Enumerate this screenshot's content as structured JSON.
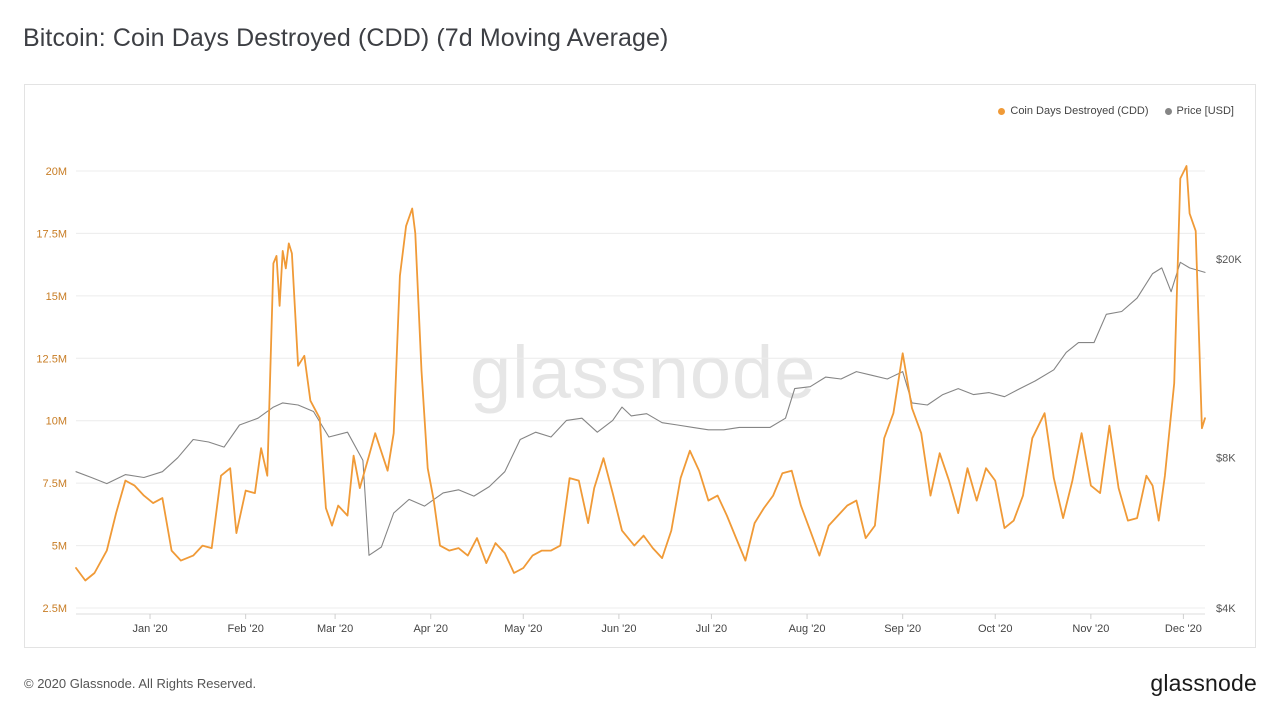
{
  "header": {
    "title": "Bitcoin: Coin Days Destroyed (CDD) (7d Moving Average)"
  },
  "watermark": "glassnode",
  "footer": {
    "copyright": "© 2020 Glassnode. All Rights Reserved.",
    "logo": "glassnode"
  },
  "colors": {
    "cdd": "#f09a37",
    "price": "#858585",
    "grid": "#ececec",
    "axis_left": "#c87d25",
    "axis_right": "#555555"
  },
  "chart_data": {
    "type": "line",
    "title": "Bitcoin: Coin Days Destroyed (CDD) (7d Moving Average)",
    "legend": {
      "position": "top-right",
      "entries": [
        "Coin Days Destroyed (CDD)",
        "Price [USD]"
      ]
    },
    "grid": true,
    "x_range": [
      "2019-12-08",
      "2020-12-08"
    ],
    "x_ticks": [
      {
        "date": "2020-01-01",
        "label": "Jan '20"
      },
      {
        "date": "2020-02-01",
        "label": "Feb '20"
      },
      {
        "date": "2020-03-01",
        "label": "Mar '20"
      },
      {
        "date": "2020-04-01",
        "label": "Apr '20"
      },
      {
        "date": "2020-05-01",
        "label": "May '20"
      },
      {
        "date": "2020-06-01",
        "label": "Jun '20"
      },
      {
        "date": "2020-07-01",
        "label": "Jul '20"
      },
      {
        "date": "2020-08-01",
        "label": "Aug '20"
      },
      {
        "date": "2020-09-01",
        "label": "Sep '20"
      },
      {
        "date": "2020-10-01",
        "label": "Oct '20"
      },
      {
        "date": "2020-11-01",
        "label": "Nov '20"
      },
      {
        "date": "2020-12-01",
        "label": "Dec '20"
      }
    ],
    "y_left": {
      "range": [
        2500000,
        22000000
      ],
      "ticks": [
        {
          "value": 2500000,
          "label": "2.5M"
        },
        {
          "value": 5000000,
          "label": "5M"
        },
        {
          "value": 7500000,
          "label": "7.5M"
        },
        {
          "value": 10000000,
          "label": "10M"
        },
        {
          "value": 12500000,
          "label": "12.5M"
        },
        {
          "value": 15000000,
          "label": "15M"
        },
        {
          "value": 17500000,
          "label": "17.5M"
        },
        {
          "value": 20000000,
          "label": "20M"
        }
      ]
    },
    "y_right": {
      "scale": "log",
      "range": [
        4000,
        26000
      ],
      "ticks": [
        {
          "value": 4000,
          "label": "$4K"
        },
        {
          "value": 8000,
          "label": "$8K"
        },
        {
          "value": 20000,
          "label": "$20K"
        }
      ]
    },
    "series": [
      {
        "name": "Coin Days Destroyed (CDD)",
        "axis": "left",
        "points": [
          [
            "2019-12-08",
            4100000
          ],
          [
            "2019-12-11",
            3600000
          ],
          [
            "2019-12-14",
            3900000
          ],
          [
            "2019-12-18",
            4800000
          ],
          [
            "2019-12-21",
            6300000
          ],
          [
            "2019-12-24",
            7600000
          ],
          [
            "2019-12-27",
            7400000
          ],
          [
            "2019-12-30",
            7000000
          ],
          [
            "2020-01-02",
            6700000
          ],
          [
            "2020-01-05",
            6900000
          ],
          [
            "2020-01-08",
            4800000
          ],
          [
            "2020-01-11",
            4400000
          ],
          [
            "2020-01-15",
            4600000
          ],
          [
            "2020-01-18",
            5000000
          ],
          [
            "2020-01-21",
            4900000
          ],
          [
            "2020-01-24",
            7800000
          ],
          [
            "2020-01-27",
            8100000
          ],
          [
            "2020-01-29",
            5500000
          ],
          [
            "2020-02-01",
            7200000
          ],
          [
            "2020-02-04",
            7100000
          ],
          [
            "2020-02-06",
            8900000
          ],
          [
            "2020-02-08",
            7800000
          ],
          [
            "2020-02-10",
            16300000
          ],
          [
            "2020-02-11",
            16600000
          ],
          [
            "2020-02-12",
            14600000
          ],
          [
            "2020-02-13",
            16800000
          ],
          [
            "2020-02-14",
            16100000
          ],
          [
            "2020-02-15",
            17100000
          ],
          [
            "2020-02-16",
            16700000
          ],
          [
            "2020-02-18",
            12200000
          ],
          [
            "2020-02-20",
            12600000
          ],
          [
            "2020-02-22",
            10800000
          ],
          [
            "2020-02-25",
            10100000
          ],
          [
            "2020-02-27",
            6500000
          ],
          [
            "2020-02-29",
            5800000
          ],
          [
            "2020-03-02",
            6600000
          ],
          [
            "2020-03-05",
            6200000
          ],
          [
            "2020-03-07",
            8600000
          ],
          [
            "2020-03-09",
            7300000
          ],
          [
            "2020-03-12",
            8600000
          ],
          [
            "2020-03-14",
            9500000
          ],
          [
            "2020-03-18",
            8000000
          ],
          [
            "2020-03-20",
            9500000
          ],
          [
            "2020-03-22",
            15800000
          ],
          [
            "2020-03-24",
            17800000
          ],
          [
            "2020-03-26",
            18500000
          ],
          [
            "2020-03-27",
            17500000
          ],
          [
            "2020-03-29",
            12000000
          ],
          [
            "2020-03-31",
            8100000
          ],
          [
            "2020-04-02",
            6800000
          ],
          [
            "2020-04-04",
            5000000
          ],
          [
            "2020-04-07",
            4800000
          ],
          [
            "2020-04-10",
            4900000
          ],
          [
            "2020-04-13",
            4600000
          ],
          [
            "2020-04-16",
            5300000
          ],
          [
            "2020-04-19",
            4300000
          ],
          [
            "2020-04-22",
            5100000
          ],
          [
            "2020-04-25",
            4700000
          ],
          [
            "2020-04-28",
            3900000
          ],
          [
            "2020-05-01",
            4100000
          ],
          [
            "2020-05-04",
            4600000
          ],
          [
            "2020-05-07",
            4800000
          ],
          [
            "2020-05-10",
            4800000
          ],
          [
            "2020-05-13",
            5000000
          ],
          [
            "2020-05-16",
            7700000
          ],
          [
            "2020-05-19",
            7600000
          ],
          [
            "2020-05-22",
            5900000
          ],
          [
            "2020-05-24",
            7300000
          ],
          [
            "2020-05-27",
            8500000
          ],
          [
            "2020-05-30",
            7100000
          ],
          [
            "2020-06-02",
            5600000
          ],
          [
            "2020-06-06",
            5000000
          ],
          [
            "2020-06-09",
            5400000
          ],
          [
            "2020-06-12",
            4900000
          ],
          [
            "2020-06-15",
            4500000
          ],
          [
            "2020-06-18",
            5600000
          ],
          [
            "2020-06-21",
            7700000
          ],
          [
            "2020-06-24",
            8800000
          ],
          [
            "2020-06-27",
            8000000
          ],
          [
            "2020-06-30",
            6800000
          ],
          [
            "2020-07-03",
            7000000
          ],
          [
            "2020-07-06",
            6200000
          ],
          [
            "2020-07-09",
            5300000
          ],
          [
            "2020-07-12",
            4400000
          ],
          [
            "2020-07-15",
            5900000
          ],
          [
            "2020-07-18",
            6500000
          ],
          [
            "2020-07-21",
            7000000
          ],
          [
            "2020-07-24",
            7900000
          ],
          [
            "2020-07-27",
            8000000
          ],
          [
            "2020-07-30",
            6600000
          ],
          [
            "2020-08-02",
            5600000
          ],
          [
            "2020-08-05",
            4600000
          ],
          [
            "2020-08-08",
            5800000
          ],
          [
            "2020-08-11",
            6200000
          ],
          [
            "2020-08-14",
            6600000
          ],
          [
            "2020-08-17",
            6800000
          ],
          [
            "2020-08-20",
            5300000
          ],
          [
            "2020-08-23",
            5800000
          ],
          [
            "2020-08-26",
            9300000
          ],
          [
            "2020-08-29",
            10300000
          ],
          [
            "2020-09-01",
            12700000
          ],
          [
            "2020-09-04",
            10500000
          ],
          [
            "2020-09-07",
            9500000
          ],
          [
            "2020-09-10",
            7000000
          ],
          [
            "2020-09-13",
            8700000
          ],
          [
            "2020-09-16",
            7600000
          ],
          [
            "2020-09-19",
            6300000
          ],
          [
            "2020-09-22",
            8100000
          ],
          [
            "2020-09-25",
            6800000
          ],
          [
            "2020-09-28",
            8100000
          ],
          [
            "2020-10-01",
            7600000
          ],
          [
            "2020-10-04",
            5700000
          ],
          [
            "2020-10-07",
            6000000
          ],
          [
            "2020-10-10",
            7000000
          ],
          [
            "2020-10-13",
            9300000
          ],
          [
            "2020-10-17",
            10300000
          ],
          [
            "2020-10-20",
            7700000
          ],
          [
            "2020-10-23",
            6100000
          ],
          [
            "2020-10-26",
            7600000
          ],
          [
            "2020-10-29",
            9500000
          ],
          [
            "2020-11-01",
            7400000
          ],
          [
            "2020-11-04",
            7100000
          ],
          [
            "2020-11-07",
            9800000
          ],
          [
            "2020-11-10",
            7300000
          ],
          [
            "2020-11-13",
            6000000
          ],
          [
            "2020-11-16",
            6100000
          ],
          [
            "2020-11-19",
            7800000
          ],
          [
            "2020-11-21",
            7400000
          ],
          [
            "2020-11-23",
            6000000
          ],
          [
            "2020-11-25",
            7800000
          ],
          [
            "2020-11-28",
            11500000
          ],
          [
            "2020-11-30",
            19700000
          ],
          [
            "2020-12-02",
            20200000
          ],
          [
            "2020-12-03",
            18300000
          ],
          [
            "2020-12-05",
            17600000
          ],
          [
            "2020-12-07",
            9700000
          ],
          [
            "2020-12-08",
            10100000
          ]
        ]
      },
      {
        "name": "Price [USD]",
        "axis": "right",
        "points": [
          [
            "2019-12-08",
            7500
          ],
          [
            "2019-12-13",
            7300
          ],
          [
            "2019-12-18",
            7100
          ],
          [
            "2019-12-24",
            7400
          ],
          [
            "2019-12-30",
            7300
          ],
          [
            "2020-01-05",
            7500
          ],
          [
            "2020-01-10",
            8000
          ],
          [
            "2020-01-15",
            8700
          ],
          [
            "2020-01-20",
            8600
          ],
          [
            "2020-01-25",
            8400
          ],
          [
            "2020-01-30",
            9300
          ],
          [
            "2020-02-05",
            9600
          ],
          [
            "2020-02-10",
            10100
          ],
          [
            "2020-02-13",
            10300
          ],
          [
            "2020-02-18",
            10200
          ],
          [
            "2020-02-23",
            9900
          ],
          [
            "2020-02-28",
            8800
          ],
          [
            "2020-03-05",
            9000
          ],
          [
            "2020-03-10",
            7900
          ],
          [
            "2020-03-12",
            5100
          ],
          [
            "2020-03-16",
            5300
          ],
          [
            "2020-03-20",
            6200
          ],
          [
            "2020-03-25",
            6600
          ],
          [
            "2020-03-30",
            6400
          ],
          [
            "2020-04-05",
            6800
          ],
          [
            "2020-04-10",
            6900
          ],
          [
            "2020-04-15",
            6700
          ],
          [
            "2020-04-20",
            7000
          ],
          [
            "2020-04-25",
            7500
          ],
          [
            "2020-04-30",
            8700
          ],
          [
            "2020-05-05",
            9000
          ],
          [
            "2020-05-10",
            8800
          ],
          [
            "2020-05-15",
            9500
          ],
          [
            "2020-05-20",
            9600
          ],
          [
            "2020-05-25",
            9000
          ],
          [
            "2020-05-30",
            9500
          ],
          [
            "2020-06-02",
            10100
          ],
          [
            "2020-06-05",
            9700
          ],
          [
            "2020-06-10",
            9800
          ],
          [
            "2020-06-15",
            9400
          ],
          [
            "2020-06-20",
            9300
          ],
          [
            "2020-06-25",
            9200
          ],
          [
            "2020-06-30",
            9100
          ],
          [
            "2020-07-05",
            9100
          ],
          [
            "2020-07-10",
            9200
          ],
          [
            "2020-07-15",
            9200
          ],
          [
            "2020-07-20",
            9200
          ],
          [
            "2020-07-25",
            9600
          ],
          [
            "2020-07-28",
            11000
          ],
          [
            "2020-08-02",
            11100
          ],
          [
            "2020-08-07",
            11600
          ],
          [
            "2020-08-12",
            11500
          ],
          [
            "2020-08-17",
            11900
          ],
          [
            "2020-08-22",
            11700
          ],
          [
            "2020-08-27",
            11500
          ],
          [
            "2020-09-01",
            11900
          ],
          [
            "2020-09-04",
            10300
          ],
          [
            "2020-09-09",
            10200
          ],
          [
            "2020-09-14",
            10700
          ],
          [
            "2020-09-19",
            11000
          ],
          [
            "2020-09-24",
            10700
          ],
          [
            "2020-09-29",
            10800
          ],
          [
            "2020-10-04",
            10600
          ],
          [
            "2020-10-09",
            11000
          ],
          [
            "2020-10-14",
            11400
          ],
          [
            "2020-10-20",
            12000
          ],
          [
            "2020-10-24",
            13000
          ],
          [
            "2020-10-28",
            13600
          ],
          [
            "2020-11-02",
            13600
          ],
          [
            "2020-11-06",
            15500
          ],
          [
            "2020-11-11",
            15700
          ],
          [
            "2020-11-16",
            16700
          ],
          [
            "2020-11-21",
            18700
          ],
          [
            "2020-11-24",
            19200
          ],
          [
            "2020-11-27",
            17200
          ],
          [
            "2020-11-30",
            19700
          ],
          [
            "2020-12-03",
            19200
          ],
          [
            "2020-12-08",
            18800
          ]
        ]
      }
    ]
  }
}
